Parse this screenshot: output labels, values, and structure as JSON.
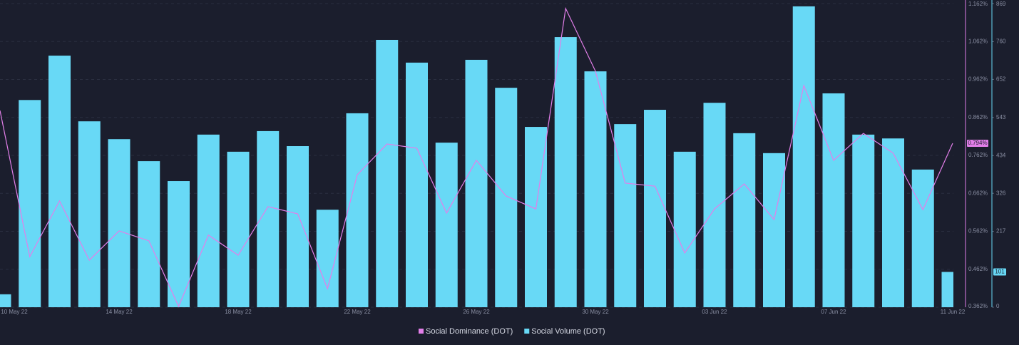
{
  "chart_data": {
    "type": "bar_line",
    "categories": [
      "10 May 22",
      null,
      null,
      null,
      "14 May 22",
      null,
      null,
      null,
      "18 May 22",
      null,
      null,
      null,
      "22 May 22",
      null,
      null,
      null,
      "26 May 22",
      null,
      null,
      null,
      "30 May 22",
      null,
      null,
      null,
      "03 Jun 22",
      null,
      null,
      null,
      "07 Jun 22",
      null,
      null,
      null,
      "11 Jun 22"
    ],
    "series": [
      {
        "name": "Social Dominance (DOT)",
        "color": "#e27fe9",
        "axis": "y",
        "kind": "line",
        "current_label": "0.794%",
        "values": [
          0.88,
          0.495,
          0.642,
          0.486,
          0.563,
          0.537,
          0.364,
          0.552,
          0.499,
          0.627,
          0.608,
          0.411,
          0.711,
          0.792,
          0.781,
          0.61,
          0.749,
          0.655,
          0.621,
          1.149,
          0.984,
          0.689,
          0.681,
          0.505,
          0.621,
          0.687,
          0.593,
          0.946,
          0.749,
          0.82,
          0.768,
          0.619,
          0.794
        ]
      },
      {
        "name": "Social Volume (DOT)",
        "color": "#68d9f6",
        "axis": "y2",
        "kind": "bar",
        "current_label": "101",
        "values": [
          37,
          593,
          720,
          532,
          481,
          418,
          361,
          494,
          445,
          504,
          461,
          279,
          555,
          765,
          700,
          471,
          708,
          628,
          516,
          773,
          675,
          524,
          565,
          445,
          585,
          498,
          441,
          861,
          612,
          494,
          483,
          394,
          101
        ]
      }
    ],
    "ylim": [
      0.362,
      1.162
    ],
    "yticks": [
      {
        "value": 0.362,
        "label": "0.362%"
      },
      {
        "value": 0.462,
        "label": "0.462%"
      },
      {
        "value": 0.562,
        "label": "0.562%"
      },
      {
        "value": 0.662,
        "label": "0.662%"
      },
      {
        "value": 0.762,
        "label": "0.762%"
      },
      {
        "value": 0.862,
        "label": "0.862%"
      },
      {
        "value": 0.962,
        "label": "0.962%"
      },
      {
        "value": 1.062,
        "label": "1.062%"
      },
      {
        "value": 1.162,
        "label": "1.162%"
      }
    ],
    "y2lim": [
      0,
      869
    ],
    "y2ticks": [
      0,
      217,
      326,
      434,
      543,
      652,
      760,
      869
    ],
    "grid": true
  }
}
